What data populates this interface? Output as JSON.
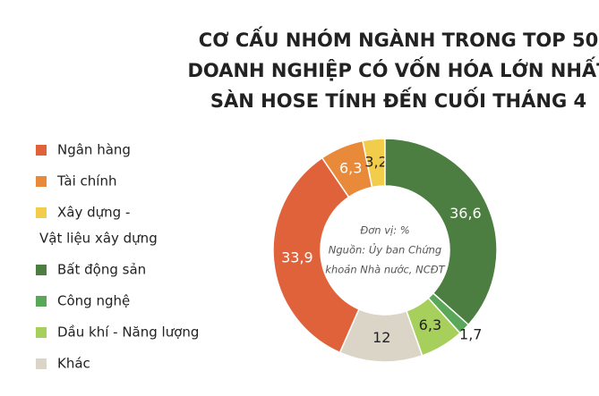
{
  "chart_data": {
    "type": "donut",
    "title": [
      "CƠ CẤU NHÓM NGÀNH TRONG TOP 50",
      "DOANH NGHIỆP CÓ VỐN HÓA LỚN NHẤT",
      "SÀN HOSE TÍNH ĐẾN CUỐI THÁNG 4"
    ],
    "note": [
      "Đơn vị: %",
      "Nguồn: Ủy ban Chứng",
      "khoản Nhà nước, NCĐT"
    ],
    "categories": [
      [
        "Ngân hàng"
      ],
      [
        "Tài  chính"
      ],
      [
        "Xây dựng -",
        "Vật liệu xây dựng"
      ],
      [
        "Bất động sản"
      ],
      [
        "Công nghệ"
      ],
      [
        "Dầu khí - Năng lượng"
      ],
      [
        "Khác"
      ]
    ],
    "values": [
      33.9,
      6.3,
      3.2,
      36.6,
      1.7,
      6.3,
      12
    ],
    "value_labels": [
      "33,9",
      "6,3",
      "3,2",
      "36,6",
      "1,7",
      "6,3",
      "12"
    ],
    "colors": [
      "#e0623b",
      "#e98a3b",
      "#f2cd4b",
      "#4b7e40",
      "#5aa75a",
      "#a7cf5b",
      "#dbd5c8"
    ]
  }
}
